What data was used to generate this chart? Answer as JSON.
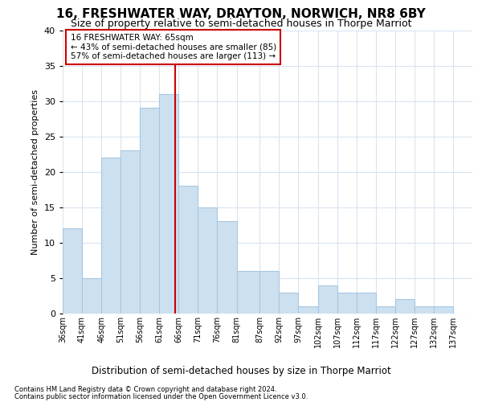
{
  "title": "16, FRESHWATER WAY, DRAYTON, NORWICH, NR8 6BY",
  "subtitle": "Size of property relative to semi-detached houses in Thorpe Marriot",
  "xlabel": "Distribution of semi-detached houses by size in Thorpe Marriot",
  "ylabel": "Number of semi-detached properties",
  "footnote1": "Contains HM Land Registry data © Crown copyright and database right 2024.",
  "footnote2": "Contains public sector information licensed under the Open Government Licence v3.0.",
  "annotation_line1": "16 FRESHWATER WAY: 65sqm",
  "annotation_line2": "← 43% of semi-detached houses are smaller (85)",
  "annotation_line3": "57% of semi-detached houses are larger (113) →",
  "property_size": 65,
  "bin_edges": [
    36,
    41,
    46,
    51,
    56,
    61,
    66,
    71,
    76,
    81,
    87,
    92,
    97,
    102,
    107,
    112,
    117,
    122,
    127,
    132,
    137
  ],
  "bin_widths": [
    5,
    5,
    5,
    5,
    5,
    5,
    5,
    5,
    5,
    6,
    5,
    5,
    5,
    5,
    5,
    5,
    5,
    5,
    5,
    5
  ],
  "bin_labels": [
    "36sqm",
    "41sqm",
    "46sqm",
    "51sqm",
    "56sqm",
    "61sqm",
    "66sqm",
    "71sqm",
    "76sqm",
    "81sqm",
    "87sqm",
    "92sqm",
    "97sqm",
    "102sqm",
    "107sqm",
    "112sqm",
    "117sqm",
    "122sqm",
    "127sqm",
    "132sqm",
    "137sqm"
  ],
  "counts": [
    12,
    5,
    22,
    23,
    29,
    31,
    18,
    15,
    13,
    6,
    6,
    3,
    1,
    4,
    3,
    3,
    1,
    2,
    1,
    1
  ],
  "bar_color": "#cce0f0",
  "bar_edge_color": "#a8c8e0",
  "line_color": "#cc0000",
  "ylim": [
    0,
    40
  ],
  "yticks": [
    0,
    5,
    10,
    15,
    20,
    25,
    30,
    35,
    40
  ],
  "background_color": "#ffffff",
  "grid_color": "#d8e4f0",
  "annotation_box_color": "#ffffff",
  "annotation_box_edge": "#cc0000",
  "title_fontsize": 11,
  "subtitle_fontsize": 9
}
